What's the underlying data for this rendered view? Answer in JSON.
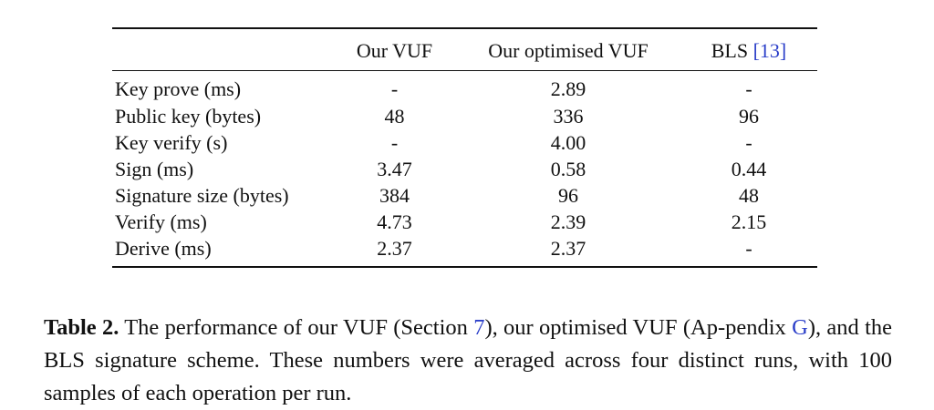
{
  "table": {
    "columns": [
      "",
      "Our VUF",
      "Our optimised VUF",
      "BLS"
    ],
    "bls_ref": "[13]",
    "rows": [
      {
        "label": "Key prove (ms)",
        "vuf": "-",
        "opt": "2.89",
        "bls": "-"
      },
      {
        "label": "Public key (bytes)",
        "vuf": "48",
        "opt": "336",
        "bls": "96"
      },
      {
        "label": "Key verify (s)",
        "vuf": "-",
        "opt": "4.00",
        "bls": "-"
      },
      {
        "label": "Sign (ms)",
        "vuf": "3.47",
        "opt": "0.58",
        "bls": "0.44"
      },
      {
        "label": "Signature size (bytes)",
        "vuf": "384",
        "opt": "96",
        "bls": "48"
      },
      {
        "label": "Verify (ms)",
        "vuf": "4.73",
        "opt": "2.39",
        "bls": "2.15"
      },
      {
        "label": "Derive (ms)",
        "vuf": "2.37",
        "opt": "2.37",
        "bls": "-"
      }
    ]
  },
  "caption": {
    "label": "Table 2.",
    "part1": "The performance of our VUF (Section ",
    "ref1": "7",
    "part2": "), our optimised VUF (Ap-pendix ",
    "ref2": "G",
    "part3": "), and the BLS signature scheme. These numbers were averaged across four distinct runs, with 100 samples of each operation per run."
  },
  "colors": {
    "text": "#111111",
    "link": "#2b3fc9"
  }
}
